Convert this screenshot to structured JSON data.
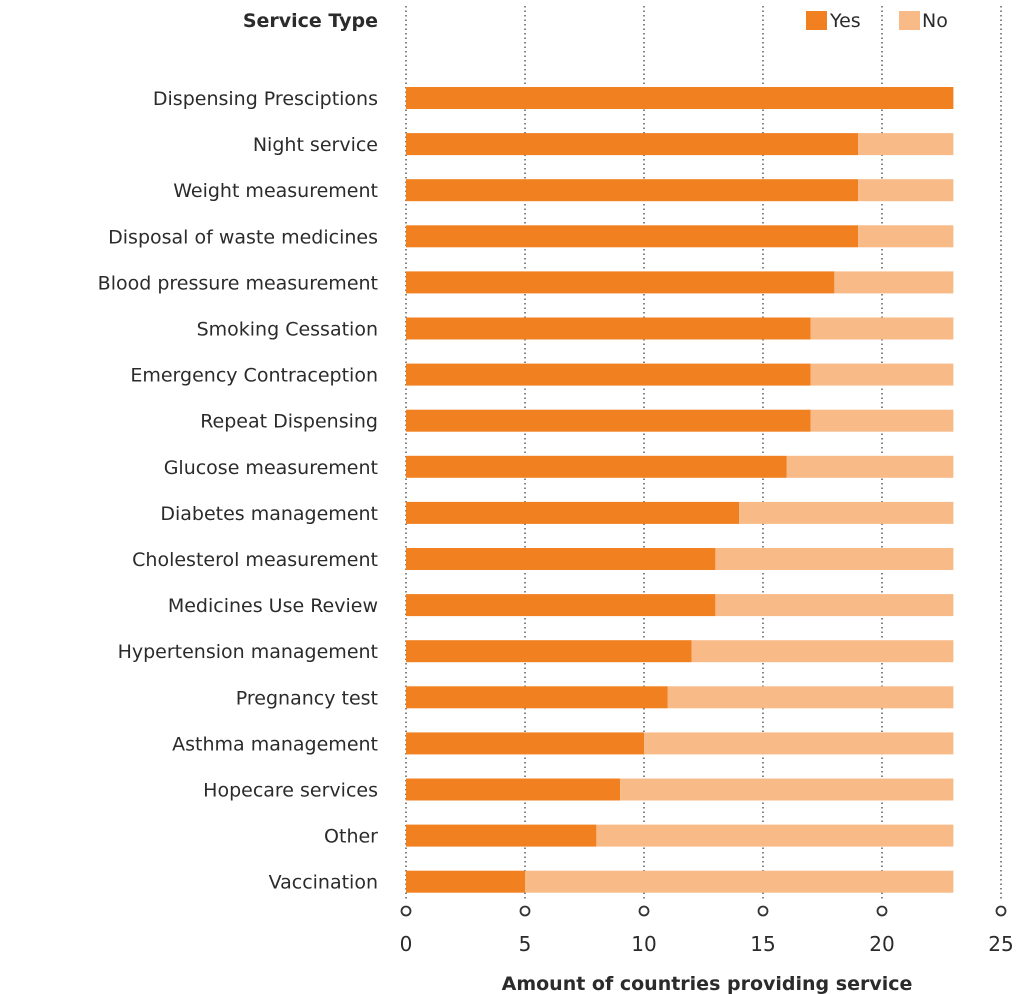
{
  "chart_data": {
    "type": "bar",
    "orientation": "horizontal",
    "stacked": true,
    "category_header": "Service Type",
    "xlabel": "Amount of countries providing service",
    "xlim": [
      0,
      25
    ],
    "xticks": [
      0,
      5,
      10,
      15,
      20,
      25
    ],
    "xtick_labels": [
      "0",
      "5",
      "10",
      "15",
      "20",
      "25"
    ],
    "grid": "vertical dotted",
    "legend_position": "top-right",
    "categories": [
      "Dispensing Presciptions",
      "Night service",
      "Weight measurement",
      "Disposal of waste medicines",
      "Blood pressure measurement",
      "Smoking Cessation",
      "Emergency Contraception",
      "Repeat Dispensing",
      "Glucose measurement",
      "Diabetes management",
      "Cholesterol measurement",
      "Medicines Use Review",
      "Hypertension management",
      "Pregnancy test",
      "Asthma management",
      "Hopecare services",
      "Other",
      "Vaccination"
    ],
    "series": [
      {
        "name": "Yes",
        "color": "#f08020",
        "values": [
          23,
          19,
          19,
          19,
          18,
          17,
          17,
          17,
          16,
          14,
          13,
          13,
          12,
          11,
          10,
          9,
          8,
          5
        ]
      },
      {
        "name": "No",
        "color": "#f8bb88",
        "values": [
          0,
          4,
          4,
          4,
          5,
          6,
          6,
          6,
          7,
          9,
          10,
          10,
          11,
          12,
          13,
          14,
          15,
          18
        ]
      }
    ]
  }
}
